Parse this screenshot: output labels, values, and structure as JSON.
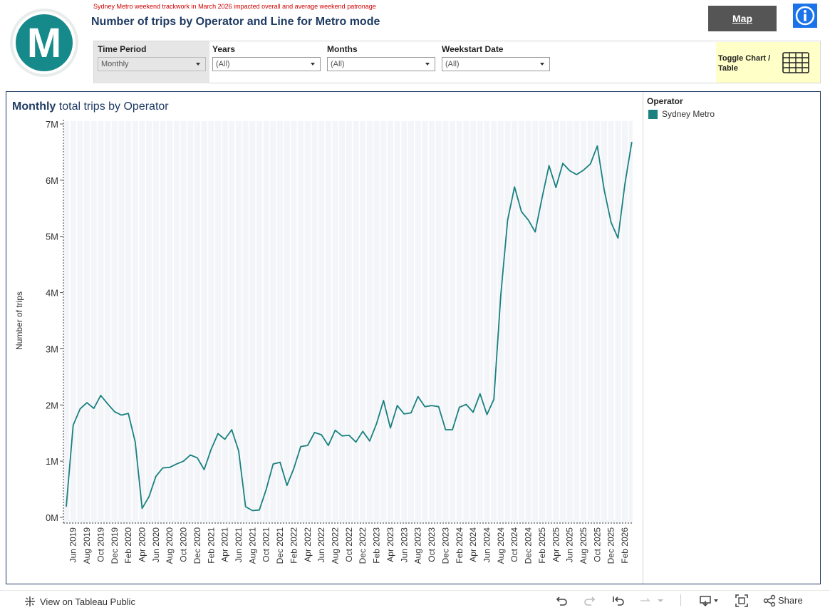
{
  "header": {
    "logo_letter": "M",
    "notice": "Sydney Metro weekend trackwork in March 2026 impacted overall and average weekend patronage",
    "title": "Number of trips by Operator and Line for Metro mode",
    "map_button": "Map",
    "info_icon": "info-icon"
  },
  "filters": {
    "time_period": {
      "label": "Time Period",
      "value": "Monthly"
    },
    "years": {
      "label": "Years",
      "value": "(All)"
    },
    "months": {
      "label": "Months",
      "value": "(All)"
    },
    "weekstart": {
      "label": "Weekstart Date",
      "value": "(All)"
    },
    "toggle_label": "Toggle Chart / Table",
    "toggle_icon": "table-grid-icon"
  },
  "chart": {
    "title_bold": "Monthly",
    "title_rest": "total trips by Operator"
  },
  "legend": {
    "title": "Operator",
    "item": "Sydney Metro",
    "color": "#1a8080"
  },
  "chart_data": {
    "type": "line",
    "title": "Monthly total trips by Operator",
    "ylabel": "Number of trips",
    "xlabel": "",
    "ylim": [
      0,
      7000000
    ],
    "y_ticks": [
      "0M",
      "1M",
      "2M",
      "3M",
      "4M",
      "5M",
      "6M",
      "7M"
    ],
    "x_tick_labels": [
      "Jun 2019",
      "Aug 2019",
      "Oct 2019",
      "Dec 2019",
      "Feb 2020",
      "Apr 2020",
      "Jun 2020",
      "Aug 2020",
      "Oct 2020",
      "Dec 2020",
      "Feb 2021",
      "Apr 2021",
      "Jun 2021",
      "Aug 2021",
      "Oct 2021",
      "Dec 2021",
      "Feb 2022",
      "Apr 2022",
      "Jun 2022",
      "Aug 2022",
      "Oct 2022",
      "Dec 2022",
      "Feb 2023",
      "Apr 2023",
      "Jun 2023",
      "Aug 2023",
      "Oct 2023",
      "Dec 2023",
      "Feb 2024",
      "Apr 2024",
      "Jun 2024",
      "Aug 2024",
      "Oct 2024",
      "Dec 2024",
      "Feb 2025",
      "Apr 2025",
      "Jun 2025",
      "Aug 2025",
      "Oct 2025",
      "Dec 2025",
      "Feb 2026"
    ],
    "grid": true,
    "legend_position": "right",
    "series": [
      {
        "name": "Sydney Metro",
        "color": "#1a8080",
        "x": [
          "2019-05",
          "2019-06",
          "2019-07",
          "2019-08",
          "2019-09",
          "2019-10",
          "2019-11",
          "2019-12",
          "2020-01",
          "2020-02",
          "2020-03",
          "2020-04",
          "2020-05",
          "2020-06",
          "2020-07",
          "2020-08",
          "2020-09",
          "2020-10",
          "2020-11",
          "2020-12",
          "2021-01",
          "2021-02",
          "2021-03",
          "2021-04",
          "2021-05",
          "2021-06",
          "2021-07",
          "2021-08",
          "2021-09",
          "2021-10",
          "2021-11",
          "2021-12",
          "2022-01",
          "2022-02",
          "2022-03",
          "2022-04",
          "2022-05",
          "2022-06",
          "2022-07",
          "2022-08",
          "2022-09",
          "2022-10",
          "2022-11",
          "2022-12",
          "2023-01",
          "2023-02",
          "2023-03",
          "2023-04",
          "2023-05",
          "2023-06",
          "2023-07",
          "2023-08",
          "2023-09",
          "2023-10",
          "2023-11",
          "2023-12",
          "2024-01",
          "2024-02",
          "2024-03",
          "2024-04",
          "2024-05",
          "2024-06",
          "2024-07",
          "2024-08",
          "2024-09",
          "2024-10",
          "2024-11",
          "2024-12",
          "2025-01",
          "2025-02",
          "2025-03",
          "2025-04",
          "2025-05",
          "2025-06",
          "2025-07",
          "2025-08",
          "2025-09",
          "2025-10",
          "2025-11",
          "2025-12",
          "2026-01",
          "2026-02",
          "2026-03",
          "2026-04"
        ],
        "values": [
          190000,
          1640000,
          1930000,
          2040000,
          1940000,
          2170000,
          2020000,
          1880000,
          1820000,
          1850000,
          1340000,
          160000,
          370000,
          730000,
          880000,
          890000,
          950000,
          1000000,
          1110000,
          1060000,
          850000,
          1210000,
          1490000,
          1390000,
          1560000,
          1180000,
          190000,
          120000,
          130000,
          500000,
          950000,
          980000,
          570000,
          870000,
          1260000,
          1280000,
          1510000,
          1470000,
          1280000,
          1550000,
          1450000,
          1460000,
          1340000,
          1530000,
          1360000,
          1670000,
          2080000,
          1590000,
          1990000,
          1840000,
          1860000,
          2150000,
          1970000,
          1990000,
          1970000,
          1560000,
          1560000,
          1960000,
          2010000,
          1870000,
          2200000,
          1830000,
          2100000,
          3940000,
          5290000,
          5880000,
          5440000,
          5290000,
          5080000,
          5690000,
          6260000,
          5870000,
          6300000,
          6170000,
          6100000,
          6180000,
          6290000,
          6610000,
          5830000,
          5250000,
          4970000,
          5930000,
          6680000,
          null
        ]
      }
    ]
  },
  "footer": {
    "tableau_link": "View on Tableau Public",
    "share_label": "Share"
  }
}
